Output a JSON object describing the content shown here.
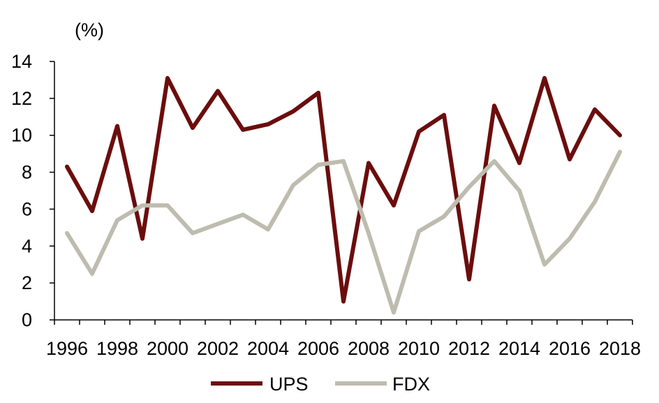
{
  "chart_data": {
    "type": "line",
    "title": "",
    "xlabel": "",
    "ylabel": "(%)",
    "x": [
      1996,
      1997,
      1998,
      1999,
      2000,
      2001,
      2002,
      2003,
      2004,
      2005,
      2006,
      2007,
      2008,
      2009,
      2010,
      2011,
      2012,
      2013,
      2014,
      2015,
      2016,
      2017,
      2018
    ],
    "x_tick_labels": [
      "1996",
      "1998",
      "2000",
      "2002",
      "2004",
      "2006",
      "2008",
      "2010",
      "2012",
      "2014",
      "2016",
      "2018"
    ],
    "y_tick_labels": [
      "0",
      "2",
      "4",
      "6",
      "8",
      "10",
      "12",
      "14"
    ],
    "ylim": [
      0,
      14
    ],
    "grid": false,
    "legend_position": "bottom",
    "series": [
      {
        "name": "UPS",
        "color": "#6b0d0d",
        "values": [
          8.3,
          5.9,
          10.5,
          4.4,
          13.1,
          10.4,
          12.4,
          10.3,
          10.6,
          11.3,
          12.3,
          1.0,
          8.5,
          6.2,
          10.2,
          11.1,
          2.2,
          11.6,
          8.5,
          13.1,
          8.7,
          11.4,
          10.0
        ]
      },
      {
        "name": "FDX",
        "color": "#bdbcaf",
        "values": [
          4.7,
          2.5,
          5.4,
          6.2,
          6.2,
          4.7,
          5.2,
          5.7,
          4.9,
          7.3,
          8.4,
          8.6,
          4.7,
          0.4,
          4.8,
          5.6,
          7.2,
          8.6,
          7.0,
          3.0,
          4.4,
          6.4,
          9.1
        ]
      }
    ]
  }
}
